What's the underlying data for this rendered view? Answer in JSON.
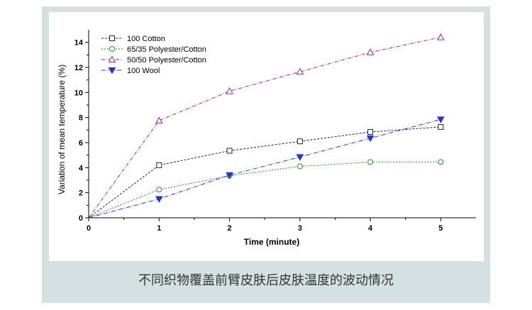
{
  "caption": "不同织物覆盖前臂皮肤后皮肤温度的波动情况",
  "chart_data": {
    "type": "line",
    "xlabel": "Time (minute)",
    "ylabel": "Variation of mean temperature (%)",
    "xlim": [
      0,
      5.5
    ],
    "ylim": [
      0,
      15
    ],
    "xticks": [
      0,
      1,
      2,
      3,
      4,
      5
    ],
    "yticks": [
      0,
      2,
      4,
      6,
      8,
      10,
      12,
      14
    ],
    "grid": false,
    "legend_position": "top-left",
    "x": [
      0,
      1,
      2,
      3,
      4,
      5
    ],
    "series": [
      {
        "name": "100 Cotton",
        "values": [
          0,
          4.2,
          5.35,
          6.1,
          6.85,
          7.25
        ],
        "color": "#222222",
        "marker": "square",
        "dash": "3,2"
      },
      {
        "name": "65/35 Polyester/Cotton",
        "values": [
          0,
          2.25,
          3.35,
          4.1,
          4.45,
          4.45
        ],
        "color": "#1a9a1a",
        "marker": "circle",
        "dash": "2,2"
      },
      {
        "name": "50/50 Polyester/Cotton",
        "values": [
          0,
          7.75,
          10.1,
          11.65,
          13.2,
          14.4
        ],
        "color": "#a020a0",
        "marker": "triangle-up",
        "dash": "5,2,1,2"
      },
      {
        "name": "100 Wool",
        "values": [
          0,
          1.5,
          3.4,
          4.85,
          6.35,
          7.85
        ],
        "color": "#2233dd",
        "marker": "triangle-down",
        "dash": "6,2,1,2"
      }
    ]
  }
}
